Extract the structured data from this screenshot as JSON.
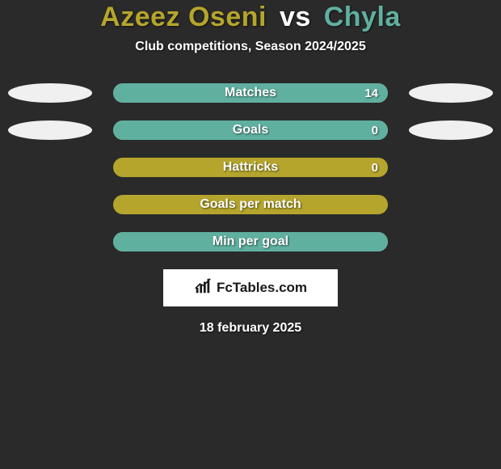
{
  "title": {
    "player1": "Azeez Oseni",
    "vs": "vs",
    "player2": "Chyla",
    "player1_color": "#b5a52c",
    "vs_color": "#ffffff",
    "player2_color": "#60b0a0"
  },
  "subtitle": "Club competitions, Season 2024/2025",
  "colors": {
    "bar_bg": "#b5a52c",
    "bar_fill": "#60b0a0",
    "ellipse": "#f0f0f0",
    "background": "#2a2a2a"
  },
  "rows": [
    {
      "label": "Matches",
      "value": "14",
      "fill_pct": 100,
      "left_ellipse": true,
      "right_ellipse": true
    },
    {
      "label": "Goals",
      "value": "0",
      "fill_pct": 100,
      "left_ellipse": true,
      "right_ellipse": true
    },
    {
      "label": "Hattricks",
      "value": "0",
      "fill_pct": 0,
      "left_ellipse": false,
      "right_ellipse": false
    },
    {
      "label": "Goals per match",
      "value": "",
      "fill_pct": 0,
      "left_ellipse": false,
      "right_ellipse": false
    },
    {
      "label": "Min per goal",
      "value": "",
      "fill_pct": 100,
      "left_ellipse": false,
      "right_ellipse": false
    }
  ],
  "brand": {
    "icon": "chart-icon",
    "text": "FcTables.com"
  },
  "date": "18 february 2025"
}
